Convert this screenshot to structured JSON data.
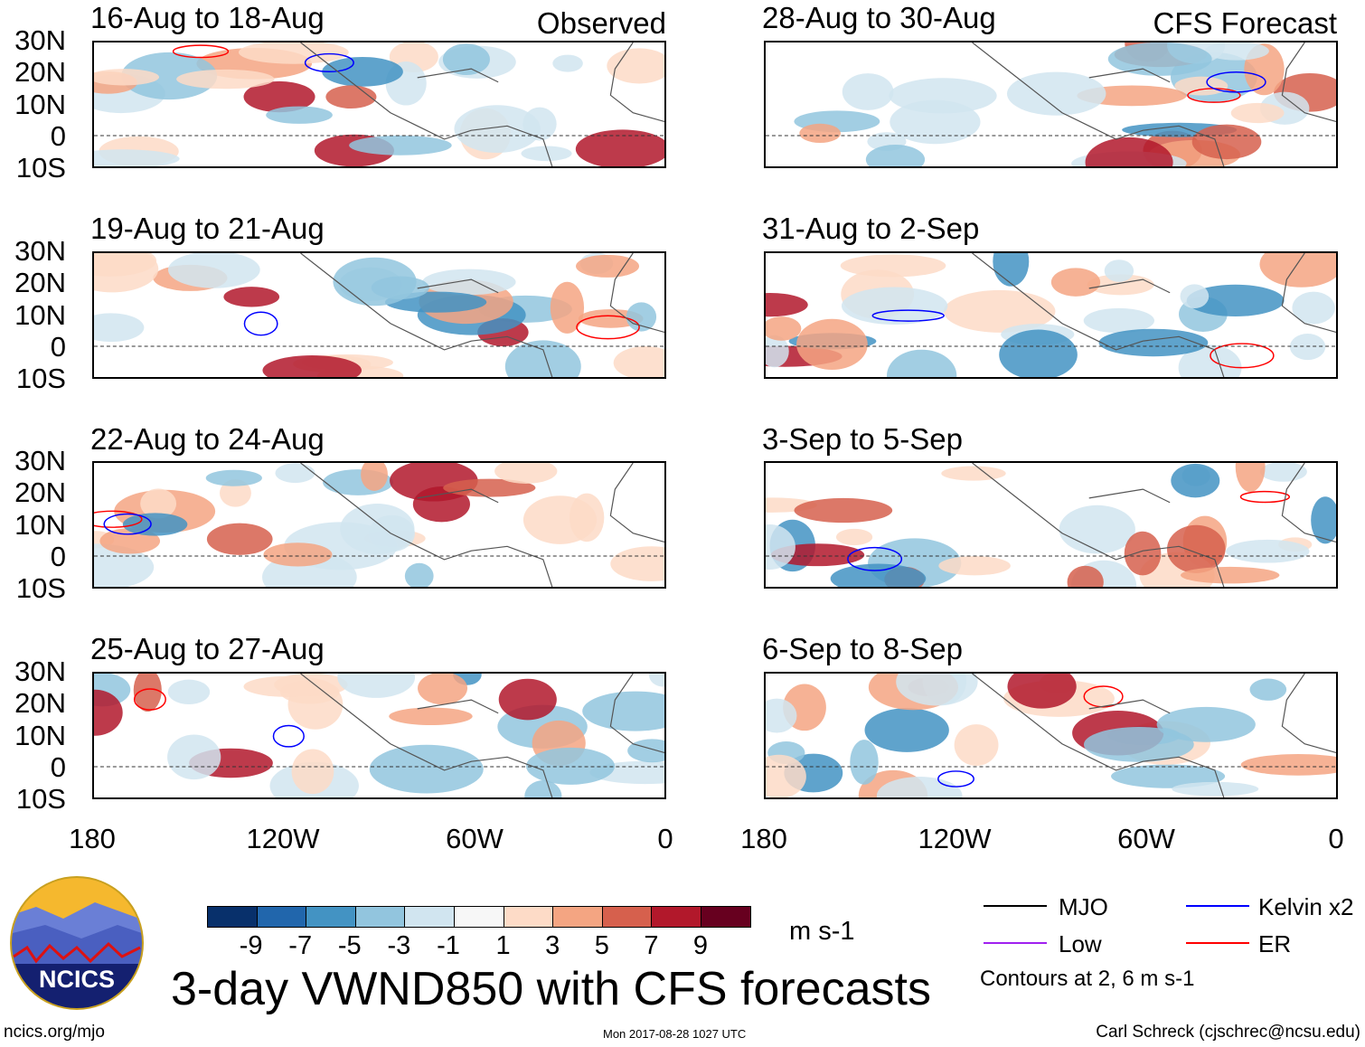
{
  "figure_title": "3-day VWND850 with CFS forecasts",
  "column_labels": {
    "left": "Observed",
    "right": "CFS Forecast"
  },
  "panels_left": [
    "16-Aug to 18-Aug",
    "19-Aug to 21-Aug",
    "22-Aug to 24-Aug",
    "25-Aug to 27-Aug"
  ],
  "panels_right": [
    "28-Aug to 30-Aug",
    "31-Aug to 2-Sep",
    "3-Sep to 5-Sep",
    "6-Sep to 8-Sep"
  ],
  "lat_ticks": [
    "30N",
    "20N",
    "10N",
    "0",
    "10S"
  ],
  "lon_ticks": [
    "180",
    "120W",
    "60W",
    "0"
  ],
  "colorbar": {
    "labels": [
      "-9",
      "-7",
      "-5",
      "-3",
      "-1",
      "1",
      "3",
      "5",
      "7",
      "9"
    ],
    "colors": [
      "#08306b",
      "#2166ac",
      "#4393c3",
      "#92c5de",
      "#d1e5f0",
      "#f7f7f7",
      "#fddbc7",
      "#f4a582",
      "#d6604d",
      "#b2182b",
      "#67001f"
    ],
    "units": "m s-1"
  },
  "legend": {
    "items": [
      {
        "label": "MJO",
        "color": "#000000"
      },
      {
        "label": "Kelvin x2",
        "color": "#0000ff"
      },
      {
        "label": "Low",
        "color": "#a020f0"
      },
      {
        "label": "ER",
        "color": "#ff0000"
      }
    ],
    "contours_note": "Contours at 2, 6 m s-1"
  },
  "logo_text": "NCICS",
  "footer": {
    "url": "ncics.org/mjo",
    "timestamp": "Mon 2017-08-28 1027 UTC",
    "author": "Carl Schreck (cjschrec@ncsu.edu)"
  }
}
